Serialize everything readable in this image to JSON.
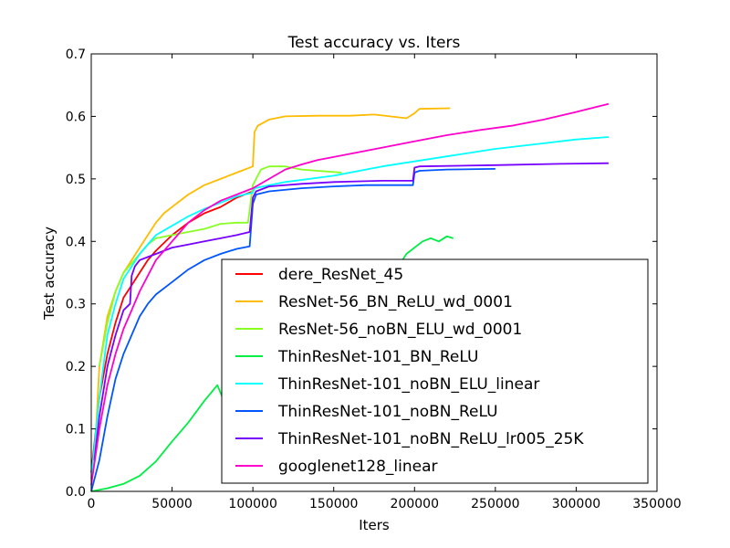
{
  "chart_data": {
    "type": "line",
    "title": "Test accuracy  vs. Iters",
    "xlabel": "Iters",
    "ylabel": "Test accuracy",
    "xlim": [
      0,
      350000
    ],
    "ylim": [
      0.0,
      0.7
    ],
    "xticks": [
      0,
      50000,
      100000,
      150000,
      200000,
      250000,
      300000,
      350000
    ],
    "xtick_labels": [
      "0",
      "50000",
      "100000",
      "150000",
      "200000",
      "250000",
      "300000",
      "350000"
    ],
    "yticks": [
      0.0,
      0.1,
      0.2,
      0.3,
      0.4,
      0.5,
      0.6,
      0.7
    ],
    "ytick_labels": [
      "0.0",
      "0.1",
      "0.2",
      "0.3",
      "0.4",
      "0.5",
      "0.6",
      "0.7"
    ],
    "grid": false,
    "legend_position": "lower-right",
    "series": [
      {
        "name": "dere_ResNet_45",
        "color": "#ff0000",
        "points": [
          [
            0,
            0.03
          ],
          [
            5000,
            0.15
          ],
          [
            10000,
            0.22
          ],
          [
            15000,
            0.27
          ],
          [
            20000,
            0.31
          ],
          [
            25000,
            0.33
          ],
          [
            30000,
            0.35
          ],
          [
            35000,
            0.37
          ],
          [
            40000,
            0.385
          ],
          [
            50000,
            0.41
          ],
          [
            60000,
            0.43
          ],
          [
            70000,
            0.445
          ],
          [
            80000,
            0.455
          ],
          [
            90000,
            0.47
          ],
          [
            100000,
            0.48
          ]
        ]
      },
      {
        "name": "ResNet-56_BN_ReLU_wd_0001",
        "color": "#ffbb00",
        "points": [
          [
            2000,
            0.05
          ],
          [
            5000,
            0.2
          ],
          [
            10000,
            0.28
          ],
          [
            15000,
            0.32
          ],
          [
            20000,
            0.35
          ],
          [
            25000,
            0.37
          ],
          [
            30000,
            0.39
          ],
          [
            35000,
            0.41
          ],
          [
            40000,
            0.43
          ],
          [
            45000,
            0.445
          ],
          [
            50000,
            0.455
          ],
          [
            60000,
            0.475
          ],
          [
            70000,
            0.49
          ],
          [
            80000,
            0.5
          ],
          [
            90000,
            0.51
          ],
          [
            100000,
            0.52
          ],
          [
            101000,
            0.575
          ],
          [
            103000,
            0.585
          ],
          [
            110000,
            0.595
          ],
          [
            120000,
            0.6
          ],
          [
            140000,
            0.601
          ],
          [
            160000,
            0.601
          ],
          [
            175000,
            0.603
          ],
          [
            185000,
            0.6
          ],
          [
            195000,
            0.597
          ],
          [
            200000,
            0.605
          ],
          [
            203000,
            0.612
          ],
          [
            222000,
            0.613
          ]
        ]
      },
      {
        "name": "ResNet-56_noBN_ELU_wd_0001",
        "color": "#88ff22",
        "points": [
          [
            5000,
            0.2
          ],
          [
            10000,
            0.27
          ],
          [
            15000,
            0.32
          ],
          [
            20000,
            0.35
          ],
          [
            25000,
            0.365
          ],
          [
            30000,
            0.38
          ],
          [
            35000,
            0.395
          ],
          [
            40000,
            0.405
          ],
          [
            50000,
            0.41
          ],
          [
            60000,
            0.415
          ],
          [
            70000,
            0.42
          ],
          [
            80000,
            0.428
          ],
          [
            90000,
            0.43
          ],
          [
            97000,
            0.43
          ],
          [
            100000,
            0.49
          ],
          [
            105000,
            0.515
          ],
          [
            110000,
            0.52
          ],
          [
            120000,
            0.52
          ],
          [
            130000,
            0.515
          ],
          [
            140000,
            0.513
          ],
          [
            150000,
            0.511
          ],
          [
            155000,
            0.51
          ]
        ]
      },
      {
        "name": "ThinResNet-101_BN_ReLU",
        "color": "#00ee44",
        "points": [
          [
            0,
            0.0
          ],
          [
            10000,
            0.005
          ],
          [
            20000,
            0.012
          ],
          [
            30000,
            0.025
          ],
          [
            40000,
            0.048
          ],
          [
            50000,
            0.08
          ],
          [
            60000,
            0.11
          ],
          [
            70000,
            0.145
          ],
          [
            78000,
            0.17
          ],
          [
            82000,
            0.145
          ],
          [
            86000,
            0.16
          ],
          [
            90000,
            0.172
          ],
          [
            95000,
            0.18
          ],
          [
            190000,
            0.36
          ],
          [
            195000,
            0.38
          ],
          [
            200000,
            0.39
          ],
          [
            205000,
            0.4
          ],
          [
            210000,
            0.405
          ],
          [
            215000,
            0.4
          ],
          [
            220000,
            0.408
          ],
          [
            224000,
            0.405
          ]
        ]
      },
      {
        "name": "ThinResNet-101_noBN_ELU_linear",
        "color": "#00ffff",
        "points": [
          [
            0,
            0.02
          ],
          [
            5000,
            0.15
          ],
          [
            10000,
            0.25
          ],
          [
            15000,
            0.3
          ],
          [
            20000,
            0.34
          ],
          [
            25000,
            0.36
          ],
          [
            30000,
            0.38
          ],
          [
            40000,
            0.41
          ],
          [
            50000,
            0.425
          ],
          [
            60000,
            0.44
          ],
          [
            70000,
            0.452
          ],
          [
            80000,
            0.462
          ],
          [
            90000,
            0.472
          ],
          [
            100000,
            0.478
          ],
          [
            101000,
            0.485
          ],
          [
            110000,
            0.49
          ],
          [
            120000,
            0.495
          ],
          [
            150000,
            0.505
          ],
          [
            180000,
            0.52
          ],
          [
            200000,
            0.528
          ],
          [
            220000,
            0.536
          ],
          [
            250000,
            0.548
          ],
          [
            280000,
            0.557
          ],
          [
            300000,
            0.563
          ],
          [
            320000,
            0.567
          ]
        ]
      },
      {
        "name": "ThinResNet-101_noBN_ReLU",
        "color": "#0055ff",
        "points": [
          [
            0,
            0.0
          ],
          [
            5000,
            0.05
          ],
          [
            10000,
            0.12
          ],
          [
            15000,
            0.18
          ],
          [
            20000,
            0.22
          ],
          [
            25000,
            0.25
          ],
          [
            30000,
            0.28
          ],
          [
            35000,
            0.3
          ],
          [
            40000,
            0.315
          ],
          [
            50000,
            0.335
          ],
          [
            60000,
            0.355
          ],
          [
            70000,
            0.37
          ],
          [
            80000,
            0.38
          ],
          [
            90000,
            0.388
          ],
          [
            98000,
            0.392
          ],
          [
            100000,
            0.46
          ],
          [
            102000,
            0.475
          ],
          [
            110000,
            0.48
          ],
          [
            130000,
            0.485
          ],
          [
            150000,
            0.488
          ],
          [
            170000,
            0.49
          ],
          [
            190000,
            0.49
          ],
          [
            199000,
            0.49
          ],
          [
            200000,
            0.51
          ],
          [
            203000,
            0.513
          ],
          [
            220000,
            0.515
          ],
          [
            250000,
            0.516
          ]
        ]
      },
      {
        "name": "ThinResNet-101_noBN_ReLU_lr005_25K",
        "color": "#7700ff",
        "points": [
          [
            2000,
            0.05
          ],
          [
            5000,
            0.12
          ],
          [
            10000,
            0.2
          ],
          [
            15000,
            0.25
          ],
          [
            20000,
            0.29
          ],
          [
            24000,
            0.3
          ],
          [
            25000,
            0.345
          ],
          [
            27000,
            0.36
          ],
          [
            30000,
            0.37
          ],
          [
            35000,
            0.375
          ],
          [
            40000,
            0.38
          ],
          [
            50000,
            0.39
          ],
          [
            60000,
            0.395
          ],
          [
            70000,
            0.4
          ],
          [
            80000,
            0.405
          ],
          [
            90000,
            0.41
          ],
          [
            98000,
            0.415
          ],
          [
            100000,
            0.47
          ],
          [
            102000,
            0.48
          ],
          [
            110000,
            0.488
          ],
          [
            130000,
            0.492
          ],
          [
            150000,
            0.495
          ],
          [
            180000,
            0.497
          ],
          [
            199000,
            0.497
          ],
          [
            200000,
            0.518
          ],
          [
            203000,
            0.52
          ],
          [
            250000,
            0.522
          ],
          [
            290000,
            0.524
          ],
          [
            320000,
            0.525
          ]
        ]
      },
      {
        "name": "googlenet128_linear",
        "color": "#ff00cc",
        "points": [
          [
            0,
            0.01
          ],
          [
            5000,
            0.1
          ],
          [
            10000,
            0.17
          ],
          [
            15000,
            0.22
          ],
          [
            20000,
            0.26
          ],
          [
            25000,
            0.29
          ],
          [
            30000,
            0.32
          ],
          [
            35000,
            0.345
          ],
          [
            40000,
            0.37
          ],
          [
            50000,
            0.4
          ],
          [
            60000,
            0.43
          ],
          [
            70000,
            0.45
          ],
          [
            80000,
            0.465
          ],
          [
            90000,
            0.475
          ],
          [
            100000,
            0.485
          ],
          [
            110000,
            0.5
          ],
          [
            120000,
            0.515
          ],
          [
            130000,
            0.523
          ],
          [
            140000,
            0.53
          ],
          [
            160000,
            0.54
          ],
          [
            180000,
            0.55
          ],
          [
            200000,
            0.56
          ],
          [
            220000,
            0.57
          ],
          [
            240000,
            0.578
          ],
          [
            260000,
            0.585
          ],
          [
            280000,
            0.595
          ],
          [
            300000,
            0.607
          ],
          [
            320000,
            0.62
          ]
        ]
      }
    ]
  }
}
